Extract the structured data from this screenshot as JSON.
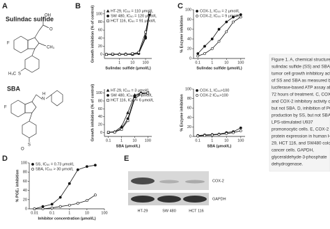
{
  "panels": [
    "A",
    "B",
    "C",
    "D",
    "E"
  ],
  "structures": {
    "sulindac_sulfide": {
      "name": "Sulindac sulfide",
      "atoms": [
        "F",
        "OH",
        "O",
        "CH₃",
        "H₃C",
        "S"
      ]
    },
    "sba": {
      "name": "SBA",
      "atoms": [
        "F",
        "N",
        "H",
        "S",
        "O"
      ]
    }
  },
  "chart_data": [
    {
      "type": "line",
      "x_label": "Sulindac sulfide (μmol/L)",
      "y_label": "Growth inhibition (% of control)",
      "log_x": true,
      "xlim": [
        0.07,
        300
      ],
      "xticks": [
        1,
        10,
        100
      ],
      "ylim": [
        -10,
        110
      ],
      "yticks": [
        0,
        20,
        40,
        60,
        80,
        100
      ],
      "x": [
        0.1,
        0.3,
        1,
        3,
        10,
        30,
        100,
        200
      ],
      "series": [
        {
          "name": "HT-29, IC₅₀ = 110 μmol/L",
          "marker": "triangle-filled",
          "color": "#111111",
          "values": [
            0,
            0,
            1,
            0,
            0,
            3,
            45,
            100
          ]
        },
        {
          "name": "SW 480, IC₅₀ = 120 μmol/L",
          "marker": "circle-filled",
          "color": "#111111",
          "values": [
            0,
            0,
            0,
            1,
            0,
            2,
            40,
            98
          ]
        },
        {
          "name": "HCT 116, IC₅₀ = 91 μmol/L",
          "marker": "square-open",
          "color": "#111111",
          "values": [
            0,
            1,
            0,
            0,
            2,
            5,
            55,
            102
          ]
        }
      ]
    },
    {
      "type": "line",
      "x_label": "SBA (μmol/L)",
      "y_label": "Growth inhibition (% of control)",
      "log_x": true,
      "xlim": [
        0.05,
        200
      ],
      "xticks": [
        0.1,
        1,
        10,
        100
      ],
      "ylim": [
        -10,
        110
      ],
      "yticks": [
        0,
        20,
        40,
        60,
        80,
        100
      ],
      "x": [
        0.1,
        0.3,
        1,
        3,
        10,
        30,
        100
      ],
      "series": [
        {
          "name": "HT-29, IC₅₀ = 3 μmol/L",
          "marker": "triangle-filled",
          "color": "#111111",
          "values": [
            0,
            2,
            15,
            50,
            95,
            100,
            100
          ]
        },
        {
          "name": "SW 480, IC₅₀ = 5 μmol/L",
          "marker": "circle-filled",
          "color": "#111111",
          "values": [
            0,
            1,
            10,
            35,
            90,
            100,
            100
          ]
        },
        {
          "name": "HCT 116, IC₅₀ = 6 μmol/L",
          "marker": "square-open",
          "color": "#111111",
          "values": [
            1,
            1,
            8,
            30,
            85,
            98,
            100
          ]
        }
      ]
    },
    {
      "type": "line",
      "x_label": "Sulindac sulfide (μmol/L)",
      "y_label": "% Enzyme inhibition",
      "log_x": true,
      "xlim": [
        0.05,
        200
      ],
      "xticks": [
        0.1,
        1,
        10,
        100
      ],
      "ylim": [
        0,
        100
      ],
      "yticks": [
        0,
        20,
        40,
        60,
        80,
        100
      ],
      "x": [
        0.1,
        0.3,
        1,
        3,
        10,
        30,
        100
      ],
      "series": [
        {
          "name": "COX-1, IC₅₀ = 2 μmol/L",
          "marker": "circle-filled",
          "color": "#111111",
          "values": [
            10,
            25,
            40,
            60,
            75,
            85,
            90
          ]
        },
        {
          "name": "COX-2, IC₅₀ = 9 μmol/L",
          "marker": "circle-open",
          "color": "#111111",
          "values": [
            5,
            10,
            20,
            35,
            55,
            75,
            85
          ]
        }
      ]
    },
    {
      "type": "line",
      "x_label": "SBA (μmol/L)",
      "y_label": "% Enzyme inhibition",
      "log_x": true,
      "xlim": [
        0.05,
        200
      ],
      "xticks": [
        0.1,
        1,
        10,
        100
      ],
      "ylim": [
        0,
        100
      ],
      "yticks": [
        0,
        20,
        40,
        60,
        80,
        100
      ],
      "x": [
        0.1,
        0.3,
        1,
        3,
        10,
        30,
        100
      ],
      "series": [
        {
          "name": "COX-1, IC₅₀>100",
          "marker": "circle-filled",
          "color": "#111111",
          "values": [
            2,
            3,
            4,
            5,
            8,
            10,
            18
          ]
        },
        {
          "name": "COX-2 IC₅₀>100",
          "marker": "circle-open",
          "color": "#111111",
          "values": [
            1,
            2,
            3,
            4,
            6,
            8,
            12
          ]
        }
      ]
    },
    {
      "type": "line",
      "x_label": "Inhibitor concentration (μmol/L)",
      "y_label": "% PGE₂ inhibition",
      "log_x": true,
      "xlim": [
        0.005,
        100
      ],
      "xticks": [
        0.01,
        0.1,
        1,
        10,
        100
      ],
      "ylim": [
        0,
        100
      ],
      "yticks": [
        0,
        20,
        40,
        60,
        80,
        100
      ],
      "x": [
        0.01,
        0.03,
        0.1,
        0.3,
        1,
        3,
        10,
        30
      ],
      "series": [
        {
          "name": "SS, IC₅₀ = 0.73 μmol/L",
          "marker": "circle-filled",
          "color": "#111111",
          "values": [
            0,
            5,
            10,
            25,
            55,
            85,
            92,
            95
          ]
        },
        {
          "name": "SBA, IC₅₀ > 30 μmol/L",
          "marker": "circle-open",
          "color": "#111111",
          "values": [
            0,
            0,
            2,
            5,
            8,
            12,
            18,
            30
          ]
        }
      ]
    }
  ],
  "blot": {
    "bands": [
      "COX-2",
      "GAPDH"
    ],
    "lanes": [
      "HT-29",
      "SW 480",
      "HCT 116"
    ]
  },
  "caption": [
    "Figure 1. A, chemical structures",
    "sulindac sulfide (SS) and SBA. B,",
    "tumor cell growth inhibitory activity",
    "of SS and SBA as measured by",
    "luciferase-based ATP assay after",
    "72 hours of treatment. C, COX-1",
    "and COX-2 inhibitory activity of SS",
    "but not SBA. D, inhibition of PGE",
    "production by SS, but not SBA in",
    "LPS-stimulated U937",
    "promonocytic cells. E, COX-2",
    "protein expression in human HT-",
    "29, HCT 116, and SW480 colon",
    "cancer cells. GAPDH,",
    "glyceraldehyde-3-phosphate",
    "dehydrogenase."
  ]
}
